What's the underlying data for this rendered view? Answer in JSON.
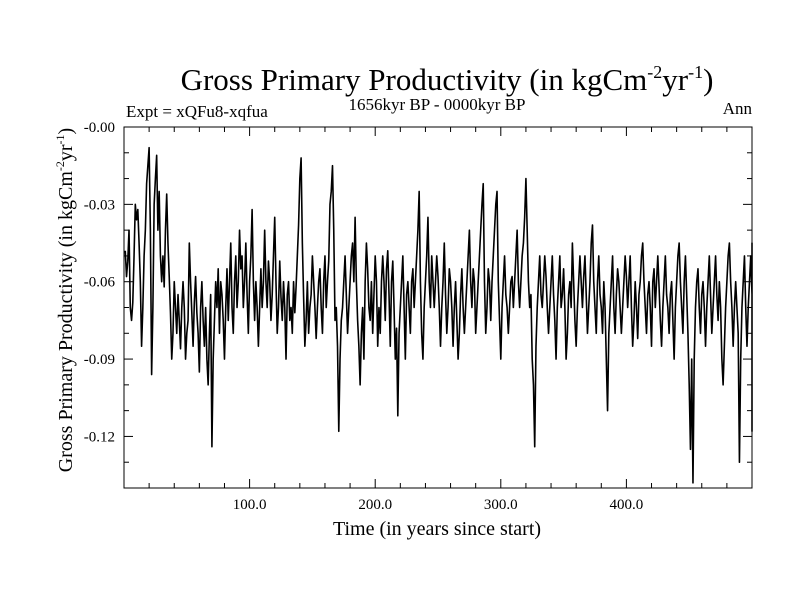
{
  "chart_data": {
    "type": "line",
    "title_main": "Gross Primary Productivity (in kgCm",
    "title_sup1": "-2",
    "title_mid": "yr",
    "title_sup2": "-1",
    "title_end": ")",
    "subtitle": "1656kyr BP - 0000kyr BP",
    "experiment": "Expt = xQFu8-xqfua",
    "season": "Ann",
    "xlabel": "Time (in years since start)",
    "ylabel_main": "Gross Primary Productivity (in kgCm",
    "ylabel_sup1": "-2",
    "ylabel_mid": "yr",
    "ylabel_sup2": "-1",
    "ylabel_end": ")",
    "xlim": [
      0,
      500
    ],
    "ylim": [
      -0.14,
      0.0
    ],
    "xticks": [
      100,
      200,
      300,
      400
    ],
    "xtick_labels": [
      "100.0",
      "200.0",
      "300.0",
      "400.0"
    ],
    "yticks": [
      0.0,
      -0.03,
      -0.06,
      -0.09,
      -0.12
    ],
    "ytick_labels": [
      "-0.00",
      "-0.03",
      "-0.06",
      "-0.09",
      "-0.12"
    ],
    "series": [
      {
        "name": "GPP",
        "x_start": 1,
        "x_step": 1,
        "values": [
          -0.048,
          -0.058,
          -0.052,
          -0.04,
          -0.07,
          -0.075,
          -0.068,
          -0.05,
          -0.03,
          -0.036,
          -0.032,
          -0.045,
          -0.06,
          -0.085,
          -0.07,
          -0.05,
          -0.04,
          -0.022,
          -0.015,
          -0.008,
          -0.04,
          -0.096,
          -0.07,
          -0.03,
          -0.02,
          -0.011,
          -0.04,
          -0.025,
          -0.05,
          -0.06,
          -0.05,
          -0.062,
          -0.04,
          -0.026,
          -0.045,
          -0.058,
          -0.072,
          -0.09,
          -0.08,
          -0.06,
          -0.07,
          -0.08,
          -0.065,
          -0.075,
          -0.086,
          -0.07,
          -0.06,
          -0.07,
          -0.09,
          -0.08,
          -0.075,
          -0.045,
          -0.06,
          -0.072,
          -0.085,
          -0.068,
          -0.058,
          -0.072,
          -0.08,
          -0.095,
          -0.07,
          -0.06,
          -0.075,
          -0.085,
          -0.07,
          -0.09,
          -0.1,
          -0.08,
          -0.065,
          -0.124,
          -0.09,
          -0.075,
          -0.06,
          -0.07,
          -0.055,
          -0.08,
          -0.06,
          -0.065,
          -0.075,
          -0.09,
          -0.07,
          -0.055,
          -0.075,
          -0.06,
          -0.045,
          -0.07,
          -0.08,
          -0.06,
          -0.05,
          -0.07,
          -0.06,
          -0.04,
          -0.055,
          -0.05,
          -0.07,
          -0.06,
          -0.045,
          -0.065,
          -0.08,
          -0.06,
          -0.05,
          -0.032,
          -0.06,
          -0.075,
          -0.06,
          -0.07,
          -0.085,
          -0.07,
          -0.055,
          -0.07,
          -0.06,
          -0.04,
          -0.06,
          -0.07,
          -0.052,
          -0.06,
          -0.075,
          -0.065,
          -0.05,
          -0.035,
          -0.06,
          -0.08,
          -0.07,
          -0.052,
          -0.066,
          -0.075,
          -0.06,
          -0.07,
          -0.09,
          -0.065,
          -0.06,
          -0.075,
          -0.07,
          -0.08,
          -0.06,
          -0.072,
          -0.062,
          -0.05,
          -0.038,
          -0.02,
          -0.012,
          -0.045,
          -0.066,
          -0.085,
          -0.075,
          -0.06,
          -0.08,
          -0.07,
          -0.065,
          -0.05,
          -0.06,
          -0.07,
          -0.082,
          -0.07,
          -0.06,
          -0.055,
          -0.07,
          -0.08,
          -0.06,
          -0.05,
          -0.07,
          -0.06,
          -0.052,
          -0.03,
          -0.025,
          -0.015,
          -0.04,
          -0.075,
          -0.07,
          -0.085,
          -0.118,
          -0.09,
          -0.075,
          -0.07,
          -0.06,
          -0.05,
          -0.065,
          -0.08,
          -0.07,
          -0.06,
          -0.05,
          -0.045,
          -0.06,
          -0.035,
          -0.06,
          -0.075,
          -0.085,
          -0.1,
          -0.08,
          -0.07,
          -0.09,
          -0.06,
          -0.045,
          -0.055,
          -0.07,
          -0.075,
          -0.06,
          -0.08,
          -0.065,
          -0.05,
          -0.06,
          -0.085,
          -0.07,
          -0.08,
          -0.06,
          -0.05,
          -0.06,
          -0.075,
          -0.055,
          -0.048,
          -0.065,
          -0.085,
          -0.06,
          -0.052,
          -0.07,
          -0.09,
          -0.078,
          -0.112,
          -0.08,
          -0.07,
          -0.06,
          -0.05,
          -0.07,
          -0.09,
          -0.065,
          -0.06,
          -0.07,
          -0.08,
          -0.06,
          -0.055,
          -0.07,
          -0.06,
          -0.05,
          -0.04,
          -0.025,
          -0.06,
          -0.08,
          -0.09,
          -0.07,
          -0.06,
          -0.05,
          -0.035,
          -0.06,
          -0.07,
          -0.05,
          -0.06,
          -0.07,
          -0.06,
          -0.05,
          -0.058,
          -0.07,
          -0.085,
          -0.07,
          -0.06,
          -0.045,
          -0.065,
          -0.08,
          -0.07,
          -0.055,
          -0.06,
          -0.07,
          -0.085,
          -0.07,
          -0.06,
          -0.075,
          -0.09,
          -0.08,
          -0.065,
          -0.055,
          -0.07,
          -0.08,
          -0.07,
          -0.06,
          -0.05,
          -0.04,
          -0.06,
          -0.07,
          -0.055,
          -0.06,
          -0.08,
          -0.07,
          -0.06,
          -0.05,
          -0.04,
          -0.03,
          -0.022,
          -0.06,
          -0.08,
          -0.07,
          -0.055,
          -0.06,
          -0.075,
          -0.06,
          -0.05,
          -0.04,
          -0.03,
          -0.025,
          -0.06,
          -0.075,
          -0.09,
          -0.07,
          -0.06,
          -0.05,
          -0.065,
          -0.07,
          -0.08,
          -0.07,
          -0.06,
          -0.058,
          -0.07,
          -0.06,
          -0.05,
          -0.04,
          -0.06,
          -0.07,
          -0.06,
          -0.05,
          -0.045,
          -0.035,
          -0.02,
          -0.04,
          -0.06,
          -0.07,
          -0.065,
          -0.09,
          -0.1,
          -0.124,
          -0.085,
          -0.07,
          -0.06,
          -0.05,
          -0.065,
          -0.07,
          -0.06,
          -0.05,
          -0.058,
          -0.07,
          -0.08,
          -0.07,
          -0.06,
          -0.05,
          -0.065,
          -0.075,
          -0.09,
          -0.07,
          -0.06,
          -0.05,
          -0.07,
          -0.065,
          -0.055,
          -0.07,
          -0.09,
          -0.08,
          -0.065,
          -0.06,
          -0.07,
          -0.045,
          -0.06,
          -0.075,
          -0.085,
          -0.07,
          -0.06,
          -0.05,
          -0.06,
          -0.07,
          -0.058,
          -0.05,
          -0.065,
          -0.08,
          -0.07,
          -0.06,
          -0.045,
          -0.038,
          -0.06,
          -0.07,
          -0.08,
          -0.06,
          -0.05,
          -0.065,
          -0.07,
          -0.08,
          -0.06,
          -0.07,
          -0.09,
          -0.11,
          -0.08,
          -0.07,
          -0.06,
          -0.05,
          -0.07,
          -0.08,
          -0.065,
          -0.055,
          -0.06,
          -0.07,
          -0.08,
          -0.07,
          -0.06,
          -0.05,
          -0.058,
          -0.07,
          -0.06,
          -0.05,
          -0.07,
          -0.085,
          -0.075,
          -0.06,
          -0.07,
          -0.082,
          -0.065,
          -0.06,
          -0.05,
          -0.045,
          -0.06,
          -0.07,
          -0.08,
          -0.065,
          -0.06,
          -0.07,
          -0.085,
          -0.06,
          -0.055,
          -0.07,
          -0.06,
          -0.05,
          -0.062,
          -0.075,
          -0.085,
          -0.07,
          -0.06,
          -0.05,
          -0.065,
          -0.07,
          -0.08,
          -0.065,
          -0.06,
          -0.075,
          -0.09,
          -0.07,
          -0.06,
          -0.05,
          -0.045,
          -0.06,
          -0.07,
          -0.08,
          -0.06,
          -0.05,
          -0.065,
          -0.08,
          -0.1,
          -0.125,
          -0.09,
          -0.138,
          -0.09,
          -0.07,
          -0.06,
          -0.055,
          -0.07,
          -0.08,
          -0.065,
          -0.06,
          -0.07,
          -0.085,
          -0.07,
          -0.06,
          -0.05,
          -0.065,
          -0.08,
          -0.07,
          -0.06,
          -0.05,
          -0.065,
          -0.075,
          -0.06,
          -0.07,
          -0.09,
          -0.1,
          -0.085,
          -0.07,
          -0.06,
          -0.05,
          -0.045,
          -0.06,
          -0.07,
          -0.085,
          -0.07,
          -0.06,
          -0.07,
          -0.08,
          -0.13,
          -0.09,
          -0.07,
          -0.06,
          -0.05,
          -0.07,
          -0.085,
          -0.07,
          -0.06,
          -0.05,
          -0.065,
          -0.08,
          -0.07,
          -0.06,
          -0.055,
          -0.07,
          -0.09,
          -0.07,
          -0.06,
          -0.05,
          -0.065,
          -0.08,
          -0.07,
          -0.06,
          -0.07,
          -0.08,
          -0.118,
          -0.09,
          -0.07,
          -0.06,
          -0.07,
          -0.085,
          -0.075,
          -0.06,
          -0.07,
          -0.09,
          -0.08,
          -0.07,
          -0.06,
          -0.07,
          -0.08,
          -0.07,
          -0.06,
          -0.05,
          -0.045,
          -0.06,
          -0.07,
          -0.085,
          -0.095
        ]
      }
    ]
  }
}
